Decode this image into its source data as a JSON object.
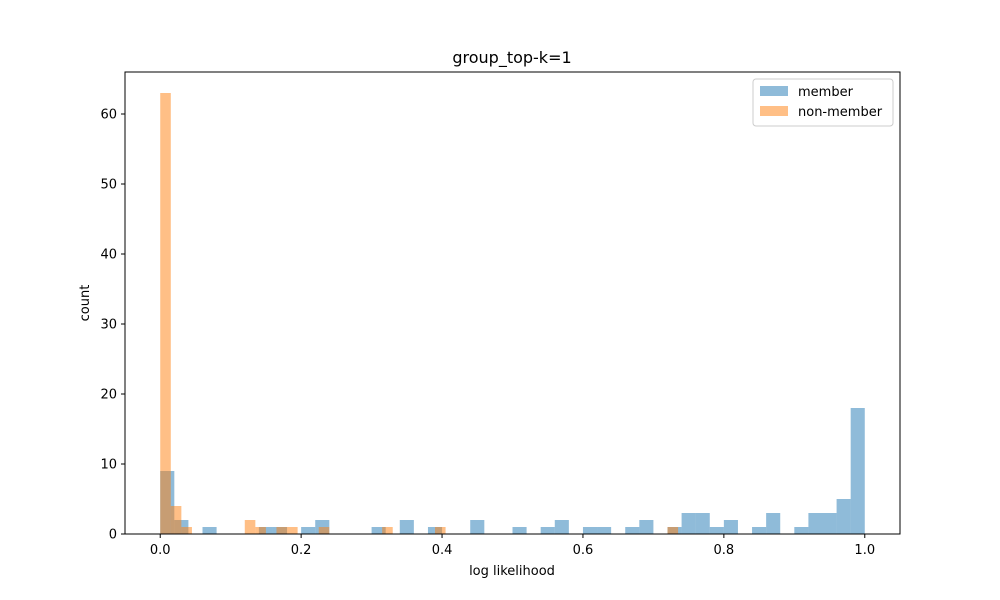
{
  "chart_data": {
    "type": "histogram",
    "title": "group_top-k=1",
    "xlabel": "log likelihood",
    "ylabel": "count",
    "xlim": [
      -0.05,
      1.05
    ],
    "ylim": [
      0,
      66
    ],
    "xticks": [
      0.0,
      0.2,
      0.4,
      0.6,
      0.8,
      1.0
    ],
    "xtick_labels": [
      "0.0",
      "0.2",
      "0.4",
      "0.6",
      "0.8",
      "1.0"
    ],
    "yticks": [
      0,
      10,
      20,
      30,
      40,
      50,
      60
    ],
    "ytick_labels": [
      "0",
      "10",
      "20",
      "30",
      "40",
      "50",
      "60"
    ],
    "bins": 50,
    "grid": false,
    "legend_position": "top-right",
    "series": [
      {
        "name": "member",
        "color": "#1f77b4",
        "bin_start": 0.0,
        "bin_width": 0.02,
        "counts": [
          9,
          2,
          0,
          1,
          0,
          0,
          0,
          1,
          1,
          0,
          1,
          2,
          0,
          0,
          0,
          1,
          0,
          2,
          0,
          1,
          0,
          0,
          2,
          0,
          0,
          1,
          0,
          1,
          2,
          0,
          1,
          1,
          0,
          1,
          2,
          0,
          1,
          3,
          3,
          1,
          2,
          0,
          1,
          3,
          0,
          1,
          3,
          3,
          5,
          18
        ]
      },
      {
        "name": "non-member",
        "color": "#ff7f0e",
        "bin_start": 0.0,
        "bin_width": 0.015,
        "counts": [
          63,
          4,
          1,
          0,
          0,
          0,
          0,
          0,
          2,
          1,
          0,
          1,
          1,
          0,
          0,
          1,
          0,
          0,
          0,
          0,
          0,
          1,
          0,
          0,
          0,
          0,
          1,
          0,
          0,
          0,
          0,
          0,
          0,
          0,
          0,
          0,
          0,
          0,
          0,
          0,
          0,
          0,
          0,
          0,
          0,
          0,
          0,
          0,
          1,
          0
        ]
      }
    ]
  }
}
